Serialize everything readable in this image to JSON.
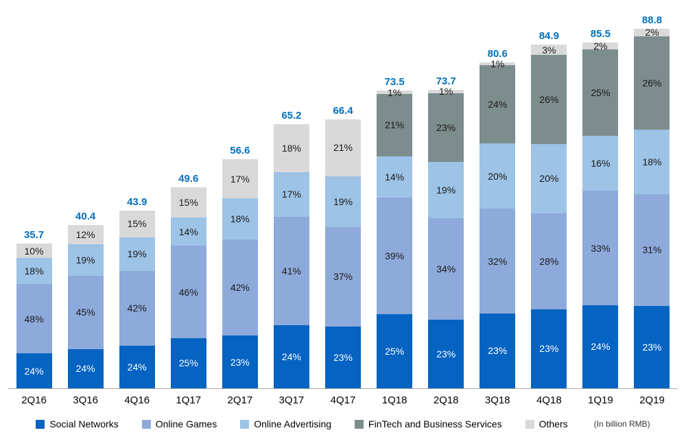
{
  "chart_data": {
    "type": "bar",
    "stacked": true,
    "title": "",
    "xlabel": "",
    "ylabel": "",
    "unit_note": "(In billion RMB)",
    "grid": false,
    "legend_position": "bottom",
    "ylim": [
      0,
      94
    ],
    "total_label_color": "#0070C0",
    "categories": [
      "2Q16",
      "3Q16",
      "4Q16",
      "1Q17",
      "2Q17",
      "3Q17",
      "4Q17",
      "1Q18",
      "2Q18",
      "3Q18",
      "4Q18",
      "1Q19",
      "2Q19"
    ],
    "totals": [
      35.7,
      40.4,
      43.9,
      49.6,
      56.6,
      65.2,
      66.4,
      73.5,
      73.7,
      80.6,
      84.9,
      85.5,
      88.8
    ],
    "value_format": "percent_of_total",
    "series": [
      {
        "name": "Social Networks",
        "color": "#0563C1",
        "label_color": "#FFFFFF",
        "values": [
          24,
          24,
          24,
          25,
          23,
          24,
          23,
          25,
          23,
          23,
          23,
          24,
          23
        ]
      },
      {
        "name": "Online Games",
        "color": "#8EAADB",
        "label_color": "#1A1A1A",
        "values": [
          48,
          45,
          42,
          46,
          42,
          41,
          37,
          39,
          34,
          32,
          28,
          33,
          31
        ]
      },
      {
        "name": "Online Advertising",
        "color": "#9DC3E6",
        "label_color": "#1A1A1A",
        "values": [
          18,
          19,
          19,
          14,
          18,
          17,
          19,
          14,
          19,
          20,
          20,
          16,
          18
        ]
      },
      {
        "name": "FinTech and Business Services",
        "color": "#7D8C8D",
        "label_color": "#1A1A1A",
        "values": [
          0,
          0,
          0,
          0,
          0,
          0,
          0,
          21,
          23,
          24,
          26,
          25,
          26
        ]
      },
      {
        "name": "Others",
        "color": "#D9D9D9",
        "label_color": "#1A1A1A",
        "values": [
          10,
          12,
          15,
          15,
          17,
          18,
          21,
          1,
          1,
          1,
          3,
          2,
          2
        ]
      }
    ]
  }
}
